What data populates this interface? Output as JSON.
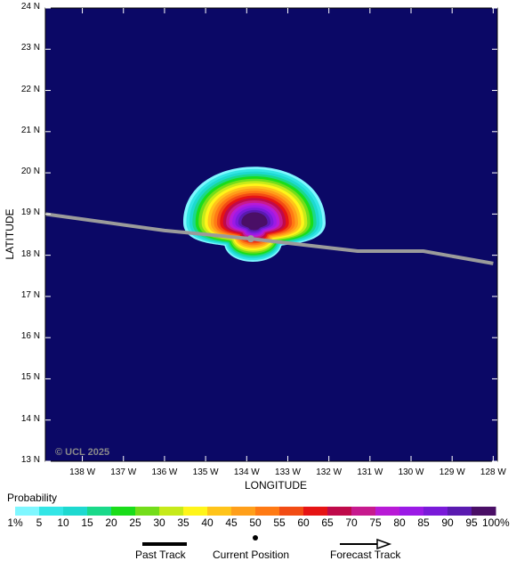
{
  "map": {
    "y_axis_title": "LATITUDE",
    "x_axis_title": "LONGITUDE",
    "lat_labels": [
      "13 N",
      "14 N",
      "15 N",
      "16 N",
      "17 N",
      "18 N",
      "19 N",
      "20 N",
      "21 N",
      "22 N",
      "23 N",
      "24 N"
    ],
    "lon_labels": [
      "138 W",
      "137 W",
      "136 W",
      "135 W",
      "134 W",
      "133 W",
      "132 W",
      "131 W",
      "130 W",
      "129 W",
      "128 W"
    ],
    "copyright": "© UCL 2025",
    "background_color": "#0b0866",
    "track_color": "#9b9b9b",
    "current_position": {
      "lat": 18.4,
      "lon": -133.9
    },
    "track_points": [
      {
        "lat": 19.0,
        "lon": -138.9
      },
      {
        "lat": 18.6,
        "lon": -136.0
      },
      {
        "lat": 18.4,
        "lon": -133.9
      },
      {
        "lat": 18.1,
        "lon": -131.3
      },
      {
        "lat": 18.1,
        "lon": -129.7
      },
      {
        "lat": 17.8,
        "lon": -128.0
      }
    ]
  },
  "legend": {
    "title": "Probability",
    "labels": [
      "1%",
      "5",
      "10",
      "15",
      "20",
      "25",
      "30",
      "35",
      "40",
      "45",
      "50",
      "55",
      "60",
      "65",
      "70",
      "75",
      "80",
      "85",
      "90",
      "95",
      "100%"
    ],
    "colors": [
      "#7ff7ff",
      "#33e6e6",
      "#1ed9d0",
      "#1ad98a",
      "#1add1a",
      "#73dd1a",
      "#c6ea1a",
      "#fff51a",
      "#ffc41a",
      "#ff9f1a",
      "#ff7a14",
      "#f24c14",
      "#e61414",
      "#bf0a4a",
      "#c71a8e",
      "#b81ad6",
      "#9b1ae6",
      "#7a1ad9",
      "#5a1ab0",
      "#4a0f66"
    ],
    "past_track_label": "Past Track",
    "current_position_label": "Current Position",
    "forecast_track_label": "Forecast Track"
  }
}
